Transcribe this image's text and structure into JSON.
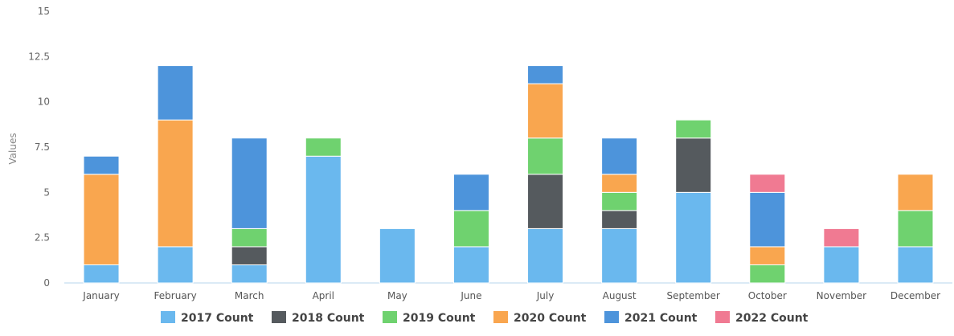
{
  "chart_data": {
    "type": "bar",
    "stacked": true,
    "categories": [
      "January",
      "February",
      "March",
      "April",
      "May",
      "June",
      "July",
      "August",
      "September",
      "October",
      "November",
      "December"
    ],
    "ylabel": "Values",
    "ylim": [
      0,
      15
    ],
    "yticks": [
      "0",
      "2.5",
      "5",
      "7.5",
      "10",
      "12.5",
      "15"
    ],
    "grid": false,
    "legend_position": "bottom",
    "series": [
      {
        "name": "2017 Count",
        "color": "#6ab8ee",
        "values": [
          1,
          2,
          1,
          7,
          3,
          2,
          3,
          3,
          5,
          0,
          2,
          2
        ]
      },
      {
        "name": "2018 Count",
        "color": "#555a5e",
        "values": [
          0,
          0,
          1,
          0,
          0,
          0,
          3,
          1,
          3,
          0,
          0,
          0
        ]
      },
      {
        "name": "2019 Count",
        "color": "#6fd26f",
        "values": [
          0,
          0,
          1,
          1,
          0,
          2,
          2,
          1,
          1,
          1,
          0,
          2
        ]
      },
      {
        "name": "2020 Count",
        "color": "#f9a64f",
        "values": [
          5,
          7,
          0,
          0,
          0,
          0,
          3,
          1,
          0,
          1,
          0,
          2
        ]
      },
      {
        "name": "2021 Count",
        "color": "#4d94db",
        "values": [
          1,
          3,
          5,
          0,
          0,
          2,
          1,
          2,
          0,
          3,
          0,
          0
        ]
      },
      {
        "name": "2022 Count",
        "color": "#f07a92",
        "values": [
          0,
          0,
          0,
          0,
          0,
          0,
          0,
          0,
          0,
          1,
          1,
          0
        ]
      }
    ]
  }
}
